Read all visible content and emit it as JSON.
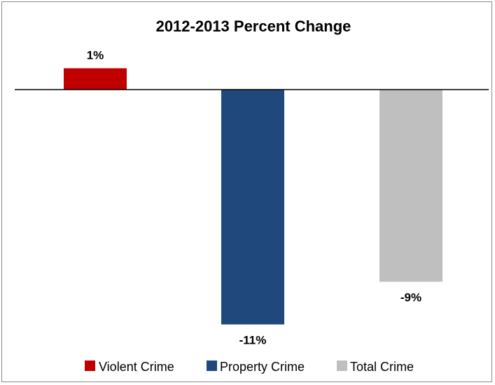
{
  "chart_data": {
    "type": "bar",
    "title": "2012-2013 Percent Change",
    "categories": [
      "Violent Crime",
      "Property Crime",
      "Total Crime"
    ],
    "series": [
      {
        "name": "Violent Crime",
        "values": [
          1,
          null,
          null
        ],
        "color": "#C00000"
      },
      {
        "name": "Property Crime",
        "values": [
          null,
          -11,
          null
        ],
        "color": "#1F497D"
      },
      {
        "name": "Total Crime",
        "values": [
          null,
          null,
          -9
        ],
        "color": "#BFBFBF"
      }
    ],
    "values": [
      1,
      -11,
      -9
    ],
    "data_labels": [
      "1%",
      "-11%",
      "-9%"
    ],
    "ylim": [
      -12,
      1.5
    ],
    "unit": "%",
    "grid": false,
    "legend": {
      "position": "bottom",
      "entries": [
        {
          "label": "Violent Crime",
          "color": "#C00000"
        },
        {
          "label": "Property Crime",
          "color": "#1F497D"
        },
        {
          "label": "Total Crime",
          "color": "#BFBFBF"
        }
      ]
    }
  }
}
